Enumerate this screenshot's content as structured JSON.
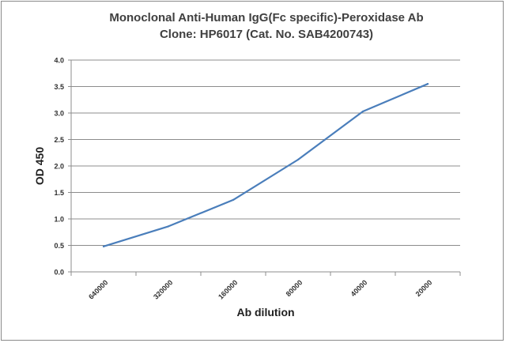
{
  "chart_data": {
    "type": "line",
    "title_line1": "Monoclonal Anti-Human IgG(Fc specific)-Peroxidase Ab",
    "title_line2": "Clone: HP6017 (Cat. No. SAB4200743)",
    "xlabel": "Ab dilution",
    "ylabel": "OD 450",
    "categories": [
      "640000",
      "320000",
      "160000",
      "80000",
      "40000",
      "20000"
    ],
    "y_ticks": [
      "0.0",
      "0.5",
      "1.0",
      "1.5",
      "2.0",
      "2.5",
      "3.0",
      "3.5",
      "4.0"
    ],
    "ylim": [
      0,
      4
    ],
    "grid": true,
    "legend": "none",
    "series": [
      {
        "values": [
          0.48,
          0.86,
          1.36,
          2.12,
          3.03,
          3.55
        ],
        "color": "#4a7ebb"
      }
    ]
  }
}
